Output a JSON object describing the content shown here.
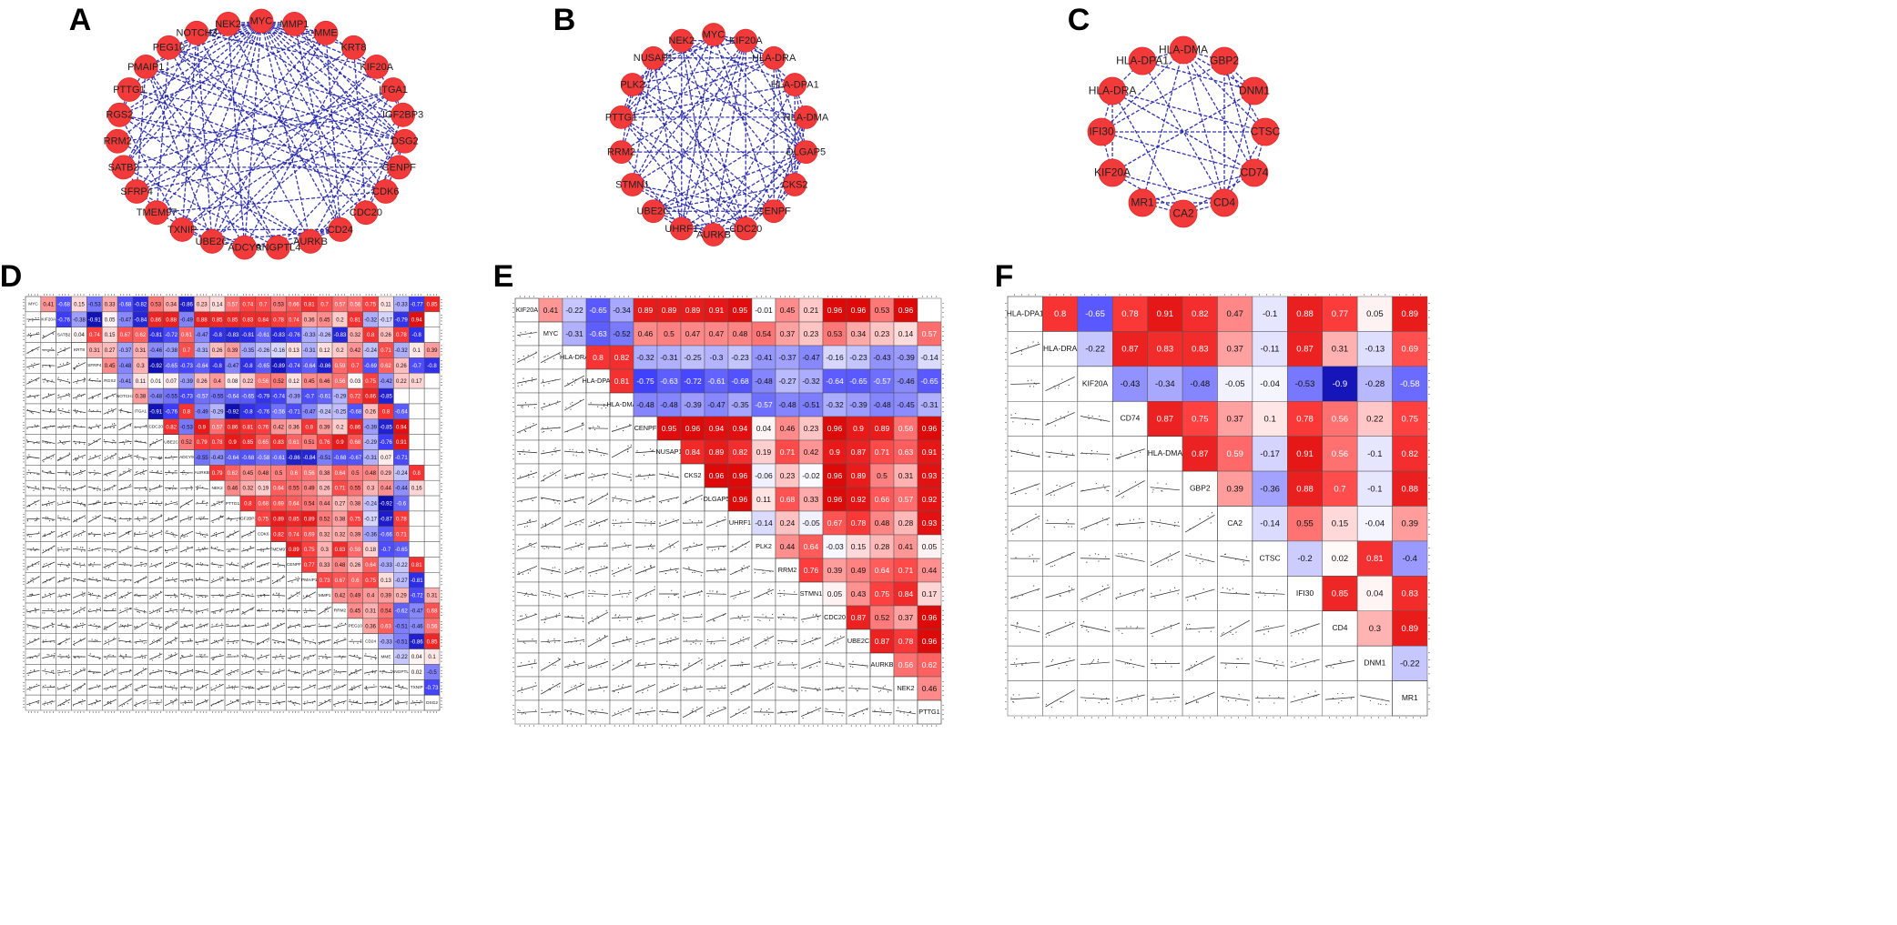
{
  "networks": [
    {
      "letter": "A",
      "nodes": [
        "MYC",
        "MMP1",
        "MME",
        "KRT8",
        "KIF20A",
        "ITGA1",
        "IGF2BP3",
        "DSG2",
        "CENPF",
        "CDK6",
        "CDC20",
        "CD24",
        "AURKB",
        "ANGPTL4",
        "ADCY9",
        "UBE2C",
        "TXNIP",
        "TMEM97",
        "SFRP4",
        "SATB2",
        "RRM2",
        "RGS2",
        "PTTG1",
        "PMAIP1",
        "PEG10",
        "NOTCH3",
        "NEK2"
      ],
      "hub": "MYC"
    },
    {
      "letter": "B",
      "nodes": [
        "MYC",
        "KIF20A",
        "HLA-DRA",
        "HLA-DPA1",
        "HLA-DMA",
        "DLGAP5",
        "CKS2",
        "CENPF",
        "CDC20",
        "AURKB",
        "UHRF1",
        "UBE2C",
        "STMN1",
        "RRM2",
        "PTTG1",
        "PLK2",
        "NUSAP1",
        "NEK2"
      ],
      "hub": ""
    },
    {
      "letter": "C",
      "nodes": [
        "HLA-DMA",
        "GBP2",
        "DNM1",
        "CTSC",
        "CD74",
        "CD4",
        "CA2",
        "MR1",
        "KIF20A",
        "IFI30",
        "HLA-DRA",
        "HLA-DPA1"
      ],
      "hub": ""
    }
  ],
  "matrices": [
    {
      "letter": "D",
      "genes": [
        "MYC",
        "KIF20A",
        "SATB2",
        "KRT8",
        "SFRP4",
        "RGS2",
        "NOTCH3",
        "ITGA1",
        "CDC20",
        "UBE2C",
        "ADCY9",
        "AURKB",
        "NEK2",
        "PTTG1",
        "IGF2BP3",
        "CDK6",
        "TMEM97",
        "CENPF",
        "PMAIP1",
        "MMP1",
        "RRM2",
        "PEG10",
        "CD24",
        "MME",
        "ANGPTL4",
        "TXNIP",
        "DSG2"
      ],
      "rows": [
        [
          "0.41",
          "-0.68",
          "0.15",
          "-0.53",
          "0.33",
          "-0.68",
          "-0.82",
          "0.53",
          "0.34",
          "-0.86",
          "0.23",
          "0.14",
          "0.57",
          "0.74",
          "0.7",
          "0.53",
          "0.66",
          "0.81",
          "0.7",
          "0.57",
          "0.56",
          "0.75",
          "0.11",
          "-0.33",
          "-0.77",
          "0.85"
        ],
        [
          "-0.76",
          "-0.38",
          "-0.91",
          "0.05",
          "-0.47",
          "-0.84",
          "0.86",
          "0.88",
          "-0.49",
          "0.88",
          "0.85",
          "0.85",
          "0.83",
          "0.84",
          "0.78",
          "0.74",
          "0.36",
          "0.45",
          "0.2",
          "0.81",
          "-0.32",
          "-0.17",
          "-0.79",
          "0.94"
        ],
        [
          "0.04",
          "0.74",
          "0.15",
          "0.67",
          "0.62",
          "-0.81",
          "-0.72",
          "0.61",
          "-0.47",
          "-0.8",
          "-0.83",
          "-0.81",
          "-0.61",
          "-0.83",
          "-0.76",
          "-0.33",
          "-0.26",
          "-0.83",
          "0.32",
          "0.8",
          "0.26",
          "0.78",
          "-0.8"
        ],
        [
          "0.31",
          "0.27",
          "-0.37",
          "0.31",
          "-0.46",
          "-0.38",
          "0.7",
          "-0.31",
          "0.26",
          "0.39",
          "-0.35",
          "-0.26",
          "-0.16",
          "0.13",
          "-0.31",
          "0.12",
          "0.2",
          "0.42",
          "-0.24",
          "0.71",
          "-0.32",
          "0.1",
          "0.39"
        ],
        [
          "0.45",
          "-0.48",
          "0.3",
          "-0.92",
          "-0.65",
          "-0.73",
          "-0.64",
          "-0.8",
          "-0.47",
          "-0.8",
          "-0.65",
          "-0.89",
          "-0.74",
          "-0.64",
          "-0.86",
          "0.59",
          "0.7",
          "-0.69",
          "0.62",
          "0.26",
          "-0.7",
          "-0.8"
        ],
        [
          "-0.41",
          "0.11",
          "0.01",
          "0.07",
          "-0.39",
          "0.26",
          "0.4",
          "0.08",
          "0.22",
          "0.56",
          "0.52",
          "0.12",
          "0.45",
          "0.46",
          "0.56",
          "0.03",
          "0.75",
          "-0.42",
          "0.22",
          "0.17"
        ],
        [
          "0.38",
          "-0.48",
          "-0.55",
          "-0.73",
          "-0.57",
          "-0.55",
          "-0.64",
          "-0.65",
          "-0.79",
          "-0.74",
          "-0.39",
          "-0.7",
          "-0.61",
          "-0.29",
          "0.72",
          "0.86",
          "-0.85"
        ],
        [
          "-0.91",
          "-0.76",
          "0.8",
          "-0.49",
          "-0.29",
          "-0.92",
          "-0.8",
          "-0.76",
          "-0.56",
          "-0.71",
          "-0.47",
          "-0.24",
          "-0.25",
          "-0.68",
          "0.26",
          "0.8",
          "-0.64"
        ],
        [
          "0.82",
          "-0.53",
          "0.9",
          "0.57",
          "0.86",
          "0.81",
          "0.76",
          "0.42",
          "0.36",
          "0.8",
          "0.39",
          "0.2",
          "0.86",
          "-0.39",
          "-0.85",
          "0.94"
        ],
        [
          "0.52",
          "0.79",
          "0.78",
          "0.9",
          "0.85",
          "0.65",
          "0.83",
          "0.61",
          "0.51",
          "0.76",
          "0.9",
          "0.68",
          "-0.29",
          "-0.76",
          "0.91"
        ],
        [
          "-0.55",
          "-0.43",
          "-0.64",
          "-0.68",
          "-0.58",
          "-0.61",
          "-0.86",
          "-0.84",
          "-0.51",
          "-0.68",
          "-0.67",
          "-0.31",
          "0.07",
          "-0.71"
        ],
        [
          "0.79",
          "0.62",
          "0.45",
          "0.48",
          "0.5",
          "0.6",
          "0.56",
          "0.38",
          "0.64",
          "0.5",
          "0.48",
          "0.29",
          "-0.24",
          "0.8"
        ],
        [
          "0.46",
          "0.32",
          "0.19",
          "0.64",
          "0.55",
          "0.49",
          "0.26",
          "0.71",
          "0.55",
          "0.3",
          "0.44",
          "-0.44",
          "0.16"
        ],
        [
          "0.8",
          "0.68",
          "0.69",
          "0.64",
          "0.54",
          "0.44",
          "0.27",
          "0.38",
          "-0.24",
          "-0.92",
          "-0.6"
        ],
        [
          "0.75",
          "0.89",
          "0.85",
          "0.89",
          "0.52",
          "0.38",
          "0.75",
          "-0.17",
          "-0.87",
          "0.78"
        ],
        [
          "0.82",
          "0.74",
          "0.69",
          "0.32",
          "0.32",
          "0.39",
          "-0.36",
          "-0.66",
          "0.71"
        ],
        [
          "0.89",
          "0.75",
          "0.3",
          "0.83",
          "0.59",
          "0.18",
          "-0.7",
          "-0.65"
        ],
        [
          "0.77",
          "0.33",
          "0.48",
          "0.26",
          "0.64",
          "-0.33",
          "-0.22",
          "0.81"
        ],
        [
          "0.73",
          "0.67",
          "0.6",
          "0.75",
          "0.13",
          "-0.27",
          "-0.81"
        ],
        [
          "0.42",
          "0.49",
          "0.4",
          "0.39",
          "0.29",
          "-0.72",
          "0.31"
        ],
        [
          "0.45",
          "0.31",
          "0.54",
          "-0.62",
          "-0.47",
          "0.68"
        ],
        [
          "0.36",
          "0.63",
          "-0.51",
          "-0.46",
          "0.56"
        ],
        [
          "-0.33",
          "-0.51",
          "-0.86",
          "0.85"
        ],
        [
          "-0.22",
          "0.04",
          "0.1"
        ],
        [
          "0.02",
          "-0.5"
        ],
        [
          "-0.73"
        ]
      ]
    },
    {
      "letter": "E",
      "genes": [
        "KIF20A",
        "MYC",
        "HLA-DRA",
        "HLA-DPA1",
        "HLA-DMA",
        "CENPF",
        "NUSAP1",
        "CKS2",
        "DLGAP5",
        "UHRF1",
        "PLK2",
        "RRM2",
        "STMN1",
        "CDC20",
        "UBE2C",
        "AURKB",
        "NEK2",
        "PTTG1"
      ],
      "rows": [
        [
          "0.41",
          "-0.22",
          "-0.65",
          "-0.34",
          "0.89",
          "0.89",
          "0.89",
          "0.91",
          "0.95",
          "-0.01",
          "0.45",
          "0.21",
          "0.96",
          "0.96",
          "0.53",
          "0.96"
        ],
        [
          "-0.31",
          "-0.63",
          "-0.52",
          "0.46",
          "0.5",
          "0.47",
          "0.47",
          "0.48",
          "0.54",
          "0.37",
          "0.23",
          "0.53",
          "0.34",
          "0.23",
          "0.14",
          "0.57"
        ],
        [
          "0.8",
          "0.82",
          "-0.32",
          "-0.31",
          "-0.25",
          "-0.3",
          "-0.23",
          "-0.41",
          "-0.37",
          "-0.47",
          "-0.16",
          "-0.23",
          "-0.43",
          "-0.39",
          "-0.14"
        ],
        [
          "0.81",
          "-0.75",
          "-0.63",
          "-0.72",
          "-0.61",
          "-0.68",
          "-0.48",
          "-0.27",
          "-0.32",
          "-0.64",
          "-0.65",
          "-0.57",
          "-0.46",
          "-0.65"
        ],
        [
          "-0.48",
          "-0.48",
          "-0.39",
          "-0.47",
          "-0.35",
          "-0.57",
          "-0.48",
          "-0.51",
          "-0.32",
          "-0.39",
          "-0.48",
          "-0.45",
          "-0.31"
        ],
        [
          "0.95",
          "0.96",
          "0.94",
          "0.94",
          "0.04",
          "0.46",
          "0.23",
          "0.96",
          "0.9",
          "0.89",
          "0.56",
          "0.96"
        ],
        [
          "0.84",
          "0.89",
          "0.82",
          "0.19",
          "0.71",
          "0.42",
          "0.9",
          "0.87",
          "0.71",
          "0.63",
          "0.91"
        ],
        [
          "0.96",
          "0.96",
          "-0.06",
          "0.23",
          "-0.02",
          "0.96",
          "0.89",
          "0.5",
          "0.31",
          "0.93"
        ],
        [
          "0.96",
          "0.11",
          "0.68",
          "0.33",
          "0.96",
          "0.92",
          "0.66",
          "0.57",
          "0.92"
        ],
        [
          "-0.14",
          "0.24",
          "-0.05",
          "0.67",
          "0.78",
          "0.48",
          "0.28",
          "0.93"
        ],
        [
          "0.44",
          "0.64",
          "-0.03",
          "0.15",
          "0.28",
          "0.41",
          "0.05"
        ],
        [
          "0.76",
          "0.39",
          "0.49",
          "0.64",
          "0.71",
          "0.44"
        ],
        [
          "0.05",
          "0.43",
          "0.75",
          "0.84",
          "0.17"
        ],
        [
          "0.87",
          "0.52",
          "0.37",
          "0.96"
        ],
        [
          "0.87",
          "0.78",
          "0.96"
        ],
        [
          "0.56",
          "0.62"
        ],
        [
          "0.46"
        ]
      ]
    },
    {
      "letter": "F",
      "genes": [
        "HLA-DPA1",
        "HLA-DRA",
        "KIF20A",
        "CD74",
        "HLA-DMA",
        "GBP2",
        "CA2",
        "CTSC",
        "IFI30",
        "CD4",
        "DNM1",
        "MR1"
      ],
      "rows": [
        [
          "0.8",
          "-0.65",
          "0.78",
          "0.91",
          "0.82",
          "0.47",
          "-0.1",
          "0.88",
          "0.77",
          "0.05",
          "0.89"
        ],
        [
          "-0.22",
          "0.87",
          "0.83",
          "0.83",
          "0.37",
          "-0.11",
          "0.87",
          "0.31",
          "-0.13",
          "0.69"
        ],
        [
          "-0.43",
          "-0.34",
          "-0.48",
          "-0.05",
          "-0.04",
          "-0.53",
          "-0.9",
          "-0.28",
          "-0.58"
        ],
        [
          "0.87",
          "0.75",
          "0.37",
          "0.1",
          "0.78",
          "0.56",
          "0.22",
          "0.75"
        ],
        [
          "0.87",
          "0.59",
          "-0.17",
          "0.91",
          "0.56",
          "-0.1",
          "0.82"
        ],
        [
          "0.39",
          "-0.36",
          "0.88",
          "0.7",
          "-0.1",
          "0.88"
        ],
        [
          "-0.14",
          "0.55",
          "0.15",
          "-0.04",
          "0.39"
        ],
        [
          "-0.2",
          "0.02",
          "0.81",
          "-0.4"
        ],
        [
          "0.85",
          "0.04",
          "0.83"
        ],
        [
          "0.3",
          "0.89"
        ],
        [
          "-0.22"
        ]
      ]
    }
  ]
}
